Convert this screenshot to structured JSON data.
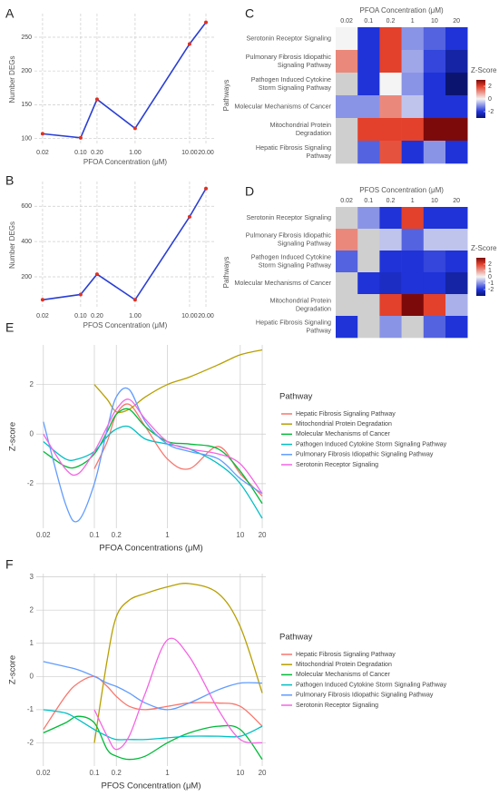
{
  "chart_data": [
    {
      "type": "line",
      "panel": "A",
      "x_label": "PFOA Concentration (μM)",
      "y_label": "Number DEGs",
      "log_x": true,
      "x": [
        0.02,
        0.1,
        0.2,
        1,
        10,
        20
      ],
      "values": [
        107,
        101,
        158,
        115,
        240,
        272
      ],
      "color": "#2a3fd4",
      "marker_color": "#e0301e",
      "xlim": [
        0.0142,
        30.5
      ],
      "ylim": [
        90,
        285
      ],
      "xticks": [
        0.02,
        {
          "value": 0.1,
          "label": "0.10"
        },
        {
          "value": 0.2,
          "label": "0.20"
        },
        {
          "value": 1,
          "label": "1.00"
        },
        {
          "value": 10,
          "label": "10.00"
        },
        {
          "value": 20,
          "label": "20.00"
        }
      ],
      "yticks": [
        100,
        150,
        200,
        250
      ],
      "grid": "dashed"
    },
    {
      "type": "line",
      "panel": "B",
      "x_label": "PFOS Concentration (μM)",
      "y_label": "Number DEGs",
      "log_x": true,
      "x": [
        0.02,
        0.1,
        0.2,
        1,
        10,
        20
      ],
      "values": [
        70,
        100,
        215,
        70,
        540,
        700
      ],
      "color": "#2a3fd4",
      "marker_color": "#e0301e",
      "xlim": [
        0.0142,
        30.5
      ],
      "ylim": [
        20,
        740
      ],
      "xticks": [
        0.02,
        {
          "value": 0.1,
          "label": "0.10"
        },
        {
          "value": 0.2,
          "label": "0.20"
        },
        {
          "value": 1,
          "label": "1.00"
        },
        {
          "value": 10,
          "label": "10.00"
        },
        {
          "value": 20,
          "label": "20.00"
        }
      ],
      "yticks": [
        200,
        400,
        600
      ],
      "grid": "dashed"
    },
    {
      "type": "heatmap",
      "panel": "C",
      "title": "PFOA Concentration (μM)",
      "y_label": "Pathways",
      "colorbar_title": "Z-Score",
      "columns": [
        "0.02",
        "0.1",
        "0.2",
        "1",
        "10",
        "20"
      ],
      "row_labels": [
        [
          "Serotonin Receptor Signaling"
        ],
        [
          "Pulmonary Fibrosis Idiopathic",
          "Signaling Pathway"
        ],
        [
          "Pathogen Induced Cytokine",
          "Storm Signaling Pathway"
        ],
        [
          "Molecular Mechanisms of Cancer"
        ],
        [
          "Mitochondrial Protein",
          "Degradation"
        ],
        [
          "Hepatic Fibrosis Signaling",
          "Pathway"
        ]
      ],
      "values": [
        [
          0,
          -2,
          2,
          -1,
          -1.5,
          -2
        ],
        [
          1.2,
          -2,
          2,
          -0.8,
          -1.8,
          -2.5
        ],
        [
          null,
          -2,
          0,
          -1,
          -2,
          -3
        ],
        [
          -1,
          -1,
          1.2,
          -0.5,
          -2,
          -2
        ],
        [
          null,
          2,
          2,
          2,
          3,
          3
        ],
        [
          null,
          -1.5,
          1.8,
          -2,
          -1,
          -2
        ]
      ],
      "colorscale": [
        [
          -3,
          "#0b1570"
        ],
        [
          -2,
          "#1f33d8"
        ],
        [
          0,
          "#f4f4f4"
        ],
        [
          2,
          "#e3412b"
        ],
        [
          3,
          "#7d0a0a"
        ]
      ],
      "na_color": "#cfcfcf",
      "colorbar_ticks": [
        2,
        0,
        -2
      ]
    },
    {
      "type": "heatmap",
      "panel": "D",
      "title": "PFOS Concentration (μM)",
      "y_label": "Pathways",
      "colorbar_title": "Z-Score",
      "columns": [
        "0.02",
        "0.1",
        "0.2",
        "1",
        "10",
        "20"
      ],
      "row_labels": [
        [
          "Serotonin Receptor Signaling"
        ],
        [
          "Pulmonary Fibrosis Idiopathic",
          "Signaling Pathway"
        ],
        [
          "Pathogen Induced Cytokine",
          "Storm Signaling Pathway"
        ],
        [
          "Molecular Mechanisms of Cancer"
        ],
        [
          "Mitochondrial Protein",
          "Degradation"
        ],
        [
          "Hepatic Fibrosis Signaling",
          "Pathway"
        ]
      ],
      "values": [
        [
          null,
          -1,
          -2,
          2,
          -2,
          -2
        ],
        [
          1.2,
          null,
          -0.5,
          -1.5,
          -0.5,
          -0.5
        ],
        [
          -1.5,
          null,
          -2,
          -2,
          -1.8,
          -2
        ],
        [
          null,
          -2,
          -2.2,
          -2,
          -2,
          -2.5
        ],
        [
          null,
          null,
          2,
          3,
          2,
          -0.7
        ],
        [
          -2,
          null,
          -1,
          null,
          -1.5,
          -2
        ]
      ],
      "colorscale": [
        [
          -3,
          "#0b1570"
        ],
        [
          -2,
          "#1f33d8"
        ],
        [
          0,
          "#f4f4f4"
        ],
        [
          2,
          "#e3412b"
        ],
        [
          3,
          "#7d0a0a"
        ]
      ],
      "na_color": "#cfcfcf",
      "colorbar_ticks": [
        2,
        1,
        0,
        -1,
        -2
      ]
    },
    {
      "type": "line",
      "panel": "E",
      "x_label": "PFOA Concentrations (μM)",
      "y_label": "Z-score",
      "log_x": true,
      "smooth": true,
      "legend_title": "Pathway",
      "x": [
        0.02,
        0.04,
        0.06,
        0.1,
        0.15,
        0.2,
        0.3,
        0.5,
        1,
        2,
        5,
        10,
        20
      ],
      "series": [
        {
          "name": "Hepatic Fibrosis Signaling Pathway",
          "color": "#f8766d",
          "values": [
            null,
            null,
            null,
            -1.4,
            -0.3,
            0.8,
            1.2,
            0.3,
            -1.0,
            -1.4,
            -0.5,
            -1.6,
            -2.5
          ]
        },
        {
          "name": "Mitochondrial Protein Degradation",
          "color": "#b79f00",
          "values": [
            null,
            null,
            null,
            2.0,
            1.4,
            0.9,
            1.0,
            1.5,
            2.0,
            2.3,
            2.8,
            3.2,
            3.4
          ]
        },
        {
          "name": "Molecular Mechanisms of Cancer",
          "color": "#00ba38",
          "values": [
            -0.7,
            -1.3,
            -1.3,
            -0.8,
            0.1,
            0.8,
            1.0,
            0.3,
            -0.3,
            -0.4,
            -0.6,
            -1.5,
            -2.8
          ]
        },
        {
          "name": "Pathogen Induced Cytokine Storm Signaling Pathway",
          "color": "#00bfc4",
          "values": [
            -0.3,
            -1.0,
            -1.0,
            -0.7,
            -0.1,
            0.2,
            0.3,
            -0.2,
            -0.4,
            -0.6,
            -1.2,
            -2.0,
            -3.4
          ]
        },
        {
          "name": "Pulmonary Fibrosis Idiopathic Signaling Pathway",
          "color": "#619cff",
          "values": [
            0.5,
            -2.8,
            -3.5,
            -2.0,
            0.2,
            1.5,
            1.8,
            0.5,
            -0.4,
            -0.7,
            -1.0,
            -1.8,
            -2.4
          ]
        },
        {
          "name": "Serotonin Receptor Signaling",
          "color": "#f564e3",
          "values": [
            0.0,
            -1.4,
            -1.6,
            -0.7,
            0.3,
            1.0,
            1.4,
            0.6,
            -0.3,
            -0.6,
            -0.8,
            -1.2,
            -2.4
          ]
        }
      ],
      "xlim": [
        0.016,
        22.4
      ],
      "ylim": [
        -3.8,
        3.6
      ],
      "xticks": [
        0.02,
        0.1,
        0.2,
        1,
        10,
        20
      ],
      "yticks": [
        -2,
        0,
        2
      ],
      "grid": "solid"
    },
    {
      "type": "line",
      "panel": "F",
      "x_label": "PFOS Concentration (μM)",
      "y_label": "Z-score",
      "log_x": true,
      "smooth": true,
      "legend_title": "Pathway",
      "x": [
        0.02,
        0.04,
        0.06,
        0.1,
        0.15,
        0.2,
        0.3,
        0.5,
        1,
        2,
        5,
        10,
        20
      ],
      "series": [
        {
          "name": "Hepatic Fibrosis Signaling Pathway",
          "color": "#f8766d",
          "values": [
            -1.6,
            -0.6,
            -0.2,
            0.0,
            -0.3,
            -0.6,
            -0.9,
            -1.0,
            -0.9,
            -0.8,
            -0.8,
            -0.9,
            -1.5
          ]
        },
        {
          "name": "Mitochondrial Protein Degradation",
          "color": "#b79f00",
          "values": [
            null,
            null,
            null,
            -2.0,
            0.5,
            1.8,
            2.3,
            2.5,
            2.7,
            2.8,
            2.5,
            1.5,
            -0.5
          ]
        },
        {
          "name": "Molecular Mechanisms of Cancer",
          "color": "#00ba38",
          "values": [
            -1.7,
            -1.4,
            -1.2,
            -1.4,
            -2.2,
            -2.4,
            -2.5,
            -2.4,
            -2.0,
            -1.7,
            -1.5,
            -1.6,
            -2.5
          ]
        },
        {
          "name": "Pathogen Induced Cytokine Storm Signaling Pathway",
          "color": "#00bfc4",
          "values": [
            -1.0,
            -1.1,
            -1.3,
            -1.6,
            -1.8,
            -1.9,
            -1.9,
            -1.9,
            -1.85,
            -1.8,
            -1.8,
            -1.8,
            -1.5
          ]
        },
        {
          "name": "Pulmonary Fibrosis Idiopathic Signaling Pathway",
          "color": "#619cff",
          "values": [
            0.45,
            0.3,
            0.2,
            0.0,
            -0.2,
            -0.3,
            -0.5,
            -0.8,
            -1.0,
            -0.8,
            -0.4,
            -0.2,
            -0.2
          ]
        },
        {
          "name": "Serotonin Receptor Signaling",
          "color": "#f564e3",
          "values": [
            null,
            null,
            null,
            -1.0,
            -1.8,
            -2.2,
            -1.8,
            -0.5,
            1.1,
            0.6,
            -1.0,
            -1.9,
            -2.0
          ]
        }
      ],
      "xlim": [
        0.016,
        22.4
      ],
      "ylim": [
        -2.7,
        3.1
      ],
      "xticks": [
        0.02,
        0.1,
        0.2,
        1,
        10,
        20
      ],
      "yticks": [
        -2,
        -1,
        0,
        1,
        2,
        3
      ],
      "grid": "solid"
    }
  ]
}
